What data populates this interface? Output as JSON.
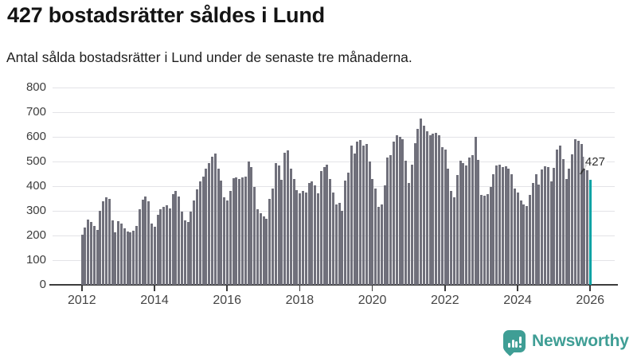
{
  "header": {
    "title": "427 bostadsrätter såldes i Lund",
    "subtitle": "Antal sålda bostadsrätter i Lund under de senaste tre månaderna."
  },
  "chart_data": {
    "type": "bar",
    "title": "427 bostadsrätter såldes i Lund",
    "subtitle": "Antal sålda bostadsrätter i Lund under de senaste tre månaderna.",
    "xlabel": "",
    "ylabel": "",
    "ylim": [
      0,
      800
    ],
    "y_ticks": [
      0,
      100,
      200,
      300,
      400,
      500,
      600,
      700,
      800
    ],
    "x_tick_labels": [
      "2012",
      "2014",
      "2016",
      "2018",
      "2020",
      "2022",
      "2024",
      "2026"
    ],
    "x_monthly_start": "2012-01",
    "x_monthly_end": "2026-01",
    "grid": true,
    "bar_color": "#70707b",
    "highlight_color": "#00a2a4",
    "highlight_index": 168,
    "annotation": {
      "text": "427",
      "value": 427
    },
    "values": [
      203,
      232,
      266,
      255,
      240,
      224,
      300,
      340,
      355,
      348,
      262,
      214,
      258,
      249,
      228,
      215,
      212,
      218,
      240,
      305,
      345,
      358,
      338,
      248,
      235,
      284,
      308,
      315,
      322,
      310,
      368,
      380,
      358,
      296,
      262,
      256,
      298,
      343,
      388,
      418,
      440,
      470,
      495,
      520,
      531,
      472,
      424,
      354,
      343,
      381,
      431,
      434,
      429,
      434,
      440,
      501,
      477,
      397,
      305,
      289,
      278,
      268,
      348,
      391,
      494,
      483,
      426,
      537,
      544,
      470,
      430,
      385,
      370,
      381,
      375,
      413,
      418,
      402,
      370,
      461,
      477,
      488,
      429,
      375,
      327,
      332,
      300,
      424,
      454,
      563,
      531,
      580,
      587,
      563,
      572,
      500,
      429,
      391,
      316,
      327,
      402,
      515,
      526,
      580,
      606,
      601,
      590,
      504,
      413,
      488,
      574,
      633,
      673,
      644,
      623,
      606,
      612,
      617,
      606,
      558,
      547,
      472,
      381,
      354,
      445,
      504,
      494,
      483,
      515,
      526,
      600,
      505,
      365,
      360,
      367,
      397,
      450,
      483,
      488,
      477,
      480,
      472,
      447,
      391,
      375,
      343,
      327,
      319,
      365,
      413,
      450,
      408,
      467,
      481,
      477,
      418,
      475,
      550,
      565,
      510,
      430,
      470,
      530,
      590,
      585,
      570,
      520,
      465,
      427
    ]
  },
  "footer": {
    "brand": "Newsworthy",
    "brand_color": "#3f9e95",
    "logo_icon": "speech-bubble-bar-chart-icon"
  }
}
